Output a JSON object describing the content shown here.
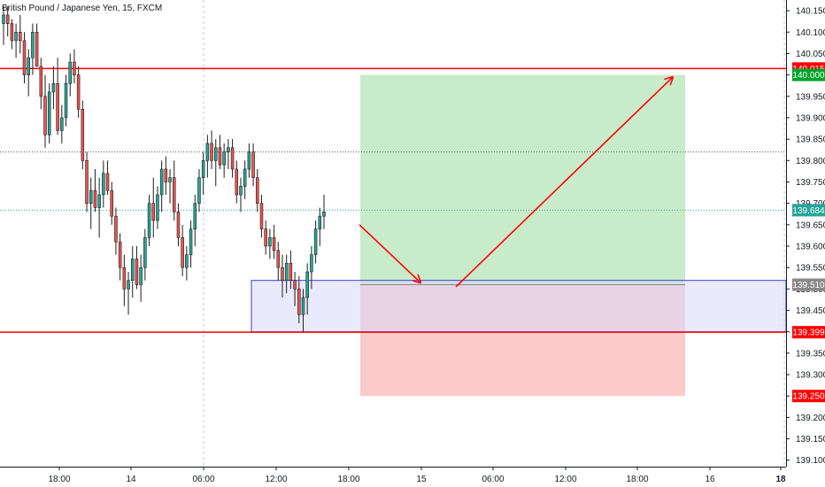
{
  "chart_title": "British Pound / Japanese Yen, 15, FXCM",
  "colors": {
    "up": "#26a69a",
    "down": "#ef5350",
    "candle_border": "#1e1e1e",
    "level_line": "#ff0000",
    "demand_zone_fill": "#d9d8fb",
    "demand_zone_border": "#3f3fd1",
    "target_zone": "#c8ecc9",
    "stop_zone": "#fbcaca",
    "current_price": "#26a69a",
    "target_tag": "#00a328",
    "arrow": "#ff0000"
  },
  "chart_data": {
    "type": "candlestick",
    "title": "British Pound / Japanese Yen, 15, FXCM",
    "ylim": [
      139.085,
      140.175
    ],
    "y_ticks": [
      139.1,
      139.15,
      139.2,
      139.25,
      139.3,
      139.35,
      139.4,
      139.45,
      139.5,
      139.55,
      139.6,
      139.65,
      139.7,
      139.75,
      139.8,
      139.85,
      139.9,
      139.95,
      140.0,
      140.05,
      140.1,
      140.15
    ],
    "x_ticks": [
      "18:00",
      "14",
      "06:00",
      "12:00",
      "18:00",
      "15",
      "06:00",
      "12:00",
      "18:00",
      "16",
      "18"
    ],
    "grid": false,
    "candles": [
      [
        140.12,
        140.16,
        140.07,
        140.14
      ],
      [
        140.14,
        140.16,
        140.09,
        140.12
      ],
      [
        140.12,
        140.13,
        140.06,
        140.08
      ],
      [
        140.08,
        140.12,
        140.04,
        140.1
      ],
      [
        140.1,
        140.14,
        140.05,
        140.08
      ],
      [
        140.08,
        140.1,
        139.98,
        140.0
      ],
      [
        140.0,
        140.06,
        139.95,
        140.04
      ],
      [
        140.04,
        140.12,
        140.0,
        140.1
      ],
      [
        140.1,
        140.12,
        140.02,
        140.02
      ],
      [
        140.02,
        140.04,
        139.92,
        139.95
      ],
      [
        139.95,
        140.0,
        139.83,
        139.86
      ],
      [
        139.86,
        139.98,
        139.84,
        139.96
      ],
      [
        139.96,
        140.02,
        139.92,
        139.98
      ],
      [
        139.98,
        140.04,
        139.86,
        139.87
      ],
      [
        139.87,
        139.93,
        139.84,
        139.9
      ],
      [
        139.9,
        140.0,
        139.88,
        139.98
      ],
      [
        139.98,
        140.05,
        139.95,
        140.03
      ],
      [
        140.03,
        140.06,
        139.98,
        140.0
      ],
      [
        140.0,
        140.02,
        139.9,
        139.92
      ],
      [
        139.92,
        139.94,
        139.78,
        139.8
      ],
      [
        139.8,
        139.82,
        139.68,
        139.7
      ],
      [
        139.7,
        139.76,
        139.64,
        139.73
      ],
      [
        139.73,
        139.78,
        139.68,
        139.69
      ],
      [
        139.69,
        139.76,
        139.62,
        139.72
      ],
      [
        139.72,
        139.8,
        139.69,
        139.77
      ],
      [
        139.77,
        139.8,
        139.72,
        139.73
      ],
      [
        139.73,
        139.75,
        139.65,
        139.67
      ],
      [
        139.67,
        139.69,
        139.58,
        139.61
      ],
      [
        139.61,
        139.63,
        139.52,
        139.55
      ],
      [
        139.55,
        139.58,
        139.46,
        139.5
      ],
      [
        139.5,
        139.54,
        139.44,
        139.52
      ],
      [
        139.52,
        139.6,
        139.48,
        139.57
      ],
      [
        139.57,
        139.6,
        139.5,
        139.51
      ],
      [
        139.51,
        139.58,
        139.47,
        139.55
      ],
      [
        139.55,
        139.64,
        139.52,
        139.62
      ],
      [
        139.62,
        139.72,
        139.6,
        139.7
      ],
      [
        139.7,
        139.76,
        139.62,
        139.66
      ],
      [
        139.66,
        139.74,
        139.64,
        139.72
      ],
      [
        139.72,
        139.8,
        139.68,
        139.78
      ],
      [
        139.78,
        139.81,
        139.72,
        139.75
      ],
      [
        139.75,
        139.78,
        139.7,
        139.76
      ],
      [
        139.76,
        139.8,
        139.66,
        139.68
      ],
      [
        139.68,
        139.7,
        139.6,
        139.62
      ],
      [
        139.62,
        139.65,
        139.53,
        139.55
      ],
      [
        139.55,
        139.6,
        139.52,
        139.58
      ],
      [
        139.58,
        139.66,
        139.55,
        139.64
      ],
      [
        139.64,
        139.72,
        139.6,
        139.7
      ],
      [
        139.7,
        139.78,
        139.68,
        139.76
      ],
      [
        139.76,
        139.82,
        139.72,
        139.8
      ],
      [
        139.8,
        139.86,
        139.76,
        139.84
      ],
      [
        139.84,
        139.87,
        139.78,
        139.8
      ],
      [
        139.8,
        139.85,
        139.74,
        139.83
      ],
      [
        139.83,
        139.86,
        139.78,
        139.79
      ],
      [
        139.79,
        139.84,
        139.76,
        139.82
      ],
      [
        139.82,
        139.85,
        139.78,
        139.83
      ],
      [
        139.83,
        139.85,
        139.76,
        139.78
      ],
      [
        139.78,
        139.8,
        139.7,
        139.72
      ],
      [
        139.72,
        139.76,
        139.68,
        139.74
      ],
      [
        139.74,
        139.8,
        139.71,
        139.78
      ],
      [
        139.78,
        139.84,
        139.76,
        139.82
      ],
      [
        139.82,
        139.84,
        139.74,
        139.76
      ],
      [
        139.76,
        139.78,
        139.68,
        139.7
      ],
      [
        139.7,
        139.72,
        139.62,
        139.64
      ],
      [
        139.64,
        139.66,
        139.58,
        139.6
      ],
      [
        139.6,
        139.64,
        139.57,
        139.62
      ],
      [
        139.62,
        139.65,
        139.57,
        139.59
      ],
      [
        139.59,
        139.61,
        139.52,
        139.55
      ],
      [
        139.55,
        139.58,
        139.48,
        139.52
      ],
      [
        139.52,
        139.58,
        139.49,
        139.56
      ],
      [
        139.56,
        139.59,
        139.5,
        139.52
      ],
      [
        139.52,
        139.54,
        139.46,
        139.5
      ],
      [
        139.5,
        139.53,
        139.42,
        139.44
      ],
      [
        139.44,
        139.5,
        139.4,
        139.48
      ],
      [
        139.48,
        139.56,
        139.44,
        139.54
      ],
      [
        139.54,
        139.6,
        139.5,
        139.58
      ],
      [
        139.58,
        139.66,
        139.56,
        139.64
      ],
      [
        139.64,
        139.69,
        139.6,
        139.67
      ],
      [
        139.67,
        139.72,
        139.64,
        139.68
      ]
    ]
  },
  "levels": {
    "resistance": 140.015,
    "support": 139.399,
    "dotted_level": 139.82,
    "current_price": 139.684
  },
  "demand_zone": {
    "top": 139.52,
    "bottom": 139.4
  },
  "position": {
    "entry": 139.51,
    "target": 140.0,
    "stop": 139.25
  },
  "price_tags": {
    "resistance": "140.015",
    "target": "140.000",
    "current": "139.684",
    "entry": "139.510",
    "support": "139.399",
    "stop": "139.250"
  }
}
